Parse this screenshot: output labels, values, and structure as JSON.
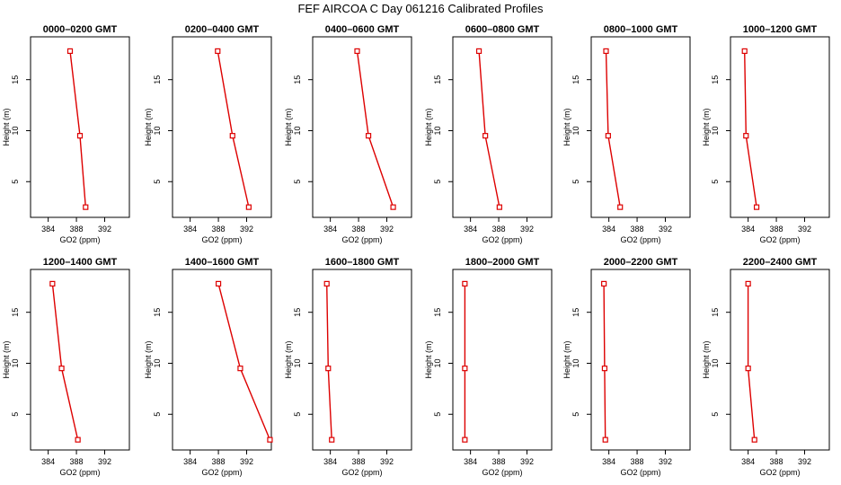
{
  "page": {
    "title": "FEF AIRCOA C  Day 061216  Calibrated Profiles"
  },
  "chart_data": {
    "type": "line",
    "xlabel": "GO2 (ppm)",
    "ylabel": "Height (m)",
    "xlim": [
      381.5,
      395.5
    ],
    "ylim": [
      1.5,
      19.2
    ],
    "x_ticks": [
      384,
      388,
      392
    ],
    "y_ticks": [
      5,
      10,
      15
    ],
    "line_color": "#dd0000",
    "marker": "open-square",
    "grid": false,
    "panels": [
      {
        "title": "0000–0200 GMT",
        "points": [
          {
            "x": 387.1,
            "y": 17.8
          },
          {
            "x": 388.5,
            "y": 9.5
          },
          {
            "x": 389.3,
            "y": 2.5
          }
        ]
      },
      {
        "title": "0200–0400 GMT",
        "points": [
          {
            "x": 387.9,
            "y": 17.8
          },
          {
            "x": 390.0,
            "y": 9.5
          },
          {
            "x": 392.3,
            "y": 2.5
          }
        ]
      },
      {
        "title": "0400–0600 GMT",
        "points": [
          {
            "x": 387.8,
            "y": 17.8
          },
          {
            "x": 389.4,
            "y": 9.5
          },
          {
            "x": 392.9,
            "y": 2.5
          }
        ]
      },
      {
        "title": "0600–0800 GMT",
        "points": [
          {
            "x": 385.2,
            "y": 17.8
          },
          {
            "x": 386.1,
            "y": 9.5
          },
          {
            "x": 388.1,
            "y": 2.5
          }
        ]
      },
      {
        "title": "0800–1000 GMT",
        "points": [
          {
            "x": 383.6,
            "y": 17.8
          },
          {
            "x": 383.9,
            "y": 9.5
          },
          {
            "x": 385.6,
            "y": 2.5
          }
        ]
      },
      {
        "title": "1000–1200 GMT",
        "points": [
          {
            "x": 383.5,
            "y": 17.8
          },
          {
            "x": 383.7,
            "y": 9.5
          },
          {
            "x": 385.2,
            "y": 2.5
          }
        ]
      },
      {
        "title": "1200–1400 GMT",
        "points": [
          {
            "x": 384.6,
            "y": 17.8
          },
          {
            "x": 385.9,
            "y": 9.5
          },
          {
            "x": 388.2,
            "y": 2.5
          }
        ]
      },
      {
        "title": "1400–1600 GMT",
        "points": [
          {
            "x": 388.0,
            "y": 17.8
          },
          {
            "x": 391.1,
            "y": 9.5
          },
          {
            "x": 395.3,
            "y": 2.5
          }
        ]
      },
      {
        "title": "1600–1800 GMT",
        "points": [
          {
            "x": 383.5,
            "y": 17.8
          },
          {
            "x": 383.7,
            "y": 9.5
          },
          {
            "x": 384.2,
            "y": 2.5
          }
        ]
      },
      {
        "title": "1800–2000 GMT",
        "points": [
          {
            "x": 383.2,
            "y": 17.8
          },
          {
            "x": 383.2,
            "y": 9.5
          },
          {
            "x": 383.2,
            "y": 2.5
          }
        ]
      },
      {
        "title": "2000–2200 GMT",
        "points": [
          {
            "x": 383.3,
            "y": 17.8
          },
          {
            "x": 383.4,
            "y": 9.5
          },
          {
            "x": 383.5,
            "y": 2.5
          }
        ]
      },
      {
        "title": "2200–2400 GMT",
        "points": [
          {
            "x": 384.0,
            "y": 17.8
          },
          {
            "x": 384.0,
            "y": 9.5
          },
          {
            "x": 384.9,
            "y": 2.5
          }
        ]
      }
    ]
  }
}
